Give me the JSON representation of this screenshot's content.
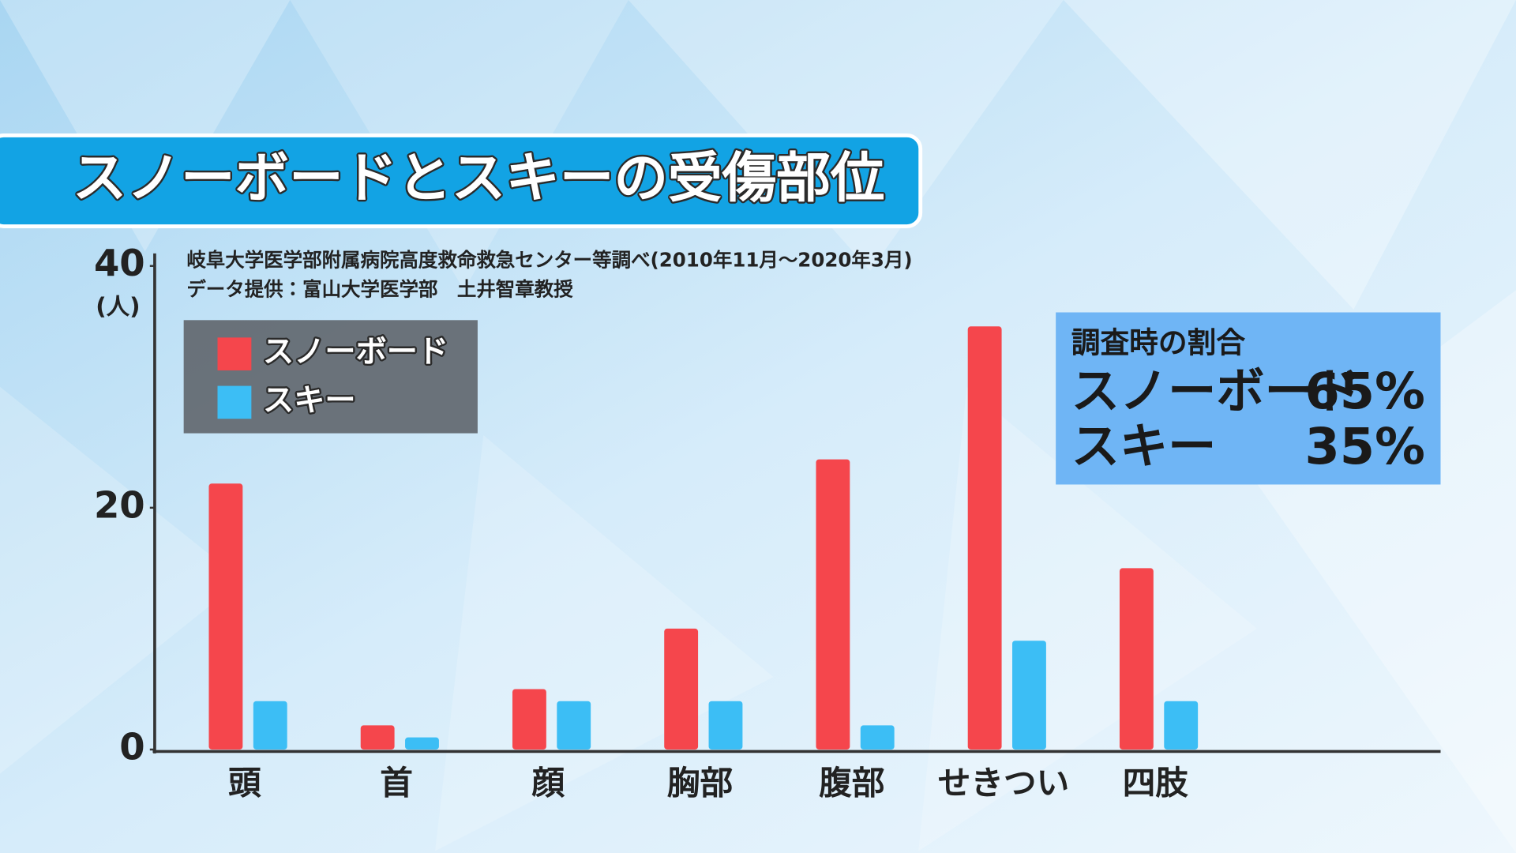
{
  "chart_data": {
    "type": "bar",
    "title": "スノーボードとスキーの受傷部位",
    "source": "岐阜大学医学部附属病院高度救命救急センター等調べ(2010年11月～2020年3月)",
    "credit": "データ提供：富山大学医学部　土井智章教授",
    "y_unit": "(人)",
    "categories": [
      "頭",
      "首",
      "顔",
      "胸部",
      "腹部",
      "せきつい",
      "四肢"
    ],
    "series": [
      {
        "name": "スノーボード",
        "color": "#f5464c",
        "values": [
          22,
          2,
          5,
          10,
          24,
          35,
          15
        ]
      },
      {
        "name": "スキー",
        "color": "#3cbef5",
        "values": [
          4,
          1,
          4,
          4,
          2,
          9,
          4
        ]
      }
    ],
    "ylim": [
      0,
      40
    ],
    "yticks": [
      0,
      20,
      40
    ],
    "grid": false,
    "legend": "upper left",
    "info_box": {
      "title": "調査時の割合",
      "rows": [
        {
          "name": "スノーボード",
          "value": "65%"
        },
        {
          "name": "スキー",
          "value": "35%"
        }
      ]
    }
  }
}
